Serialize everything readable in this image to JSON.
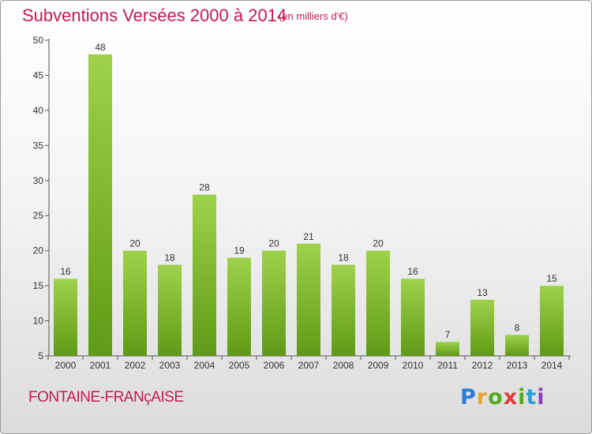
{
  "header": {
    "title": "Subventions Versées 2000 à 2014",
    "subtitle": "(en milliers d'€)"
  },
  "footer": {
    "city": "FONTAINE-FRANçAISE",
    "logo_text": [
      "P",
      "r",
      "o",
      "x",
      "i",
      "t",
      "i"
    ]
  },
  "colors": {
    "bar_light": "#9fd24a",
    "bar_dark": "#5f9a16",
    "title": "#c21a55",
    "axis": "#555555",
    "grid": "#cfcfcf"
  },
  "chart_data": {
    "type": "bar",
    "title": "Subventions Versées 2000 à 2014",
    "subtitle": "(en milliers d'€)",
    "categories": [
      "2000",
      "2001",
      "2002",
      "2003",
      "2004",
      "2005",
      "2006",
      "2007",
      "2008",
      "2009",
      "2010",
      "2011",
      "2012",
      "2013",
      "2014"
    ],
    "values": [
      16,
      48,
      20,
      18,
      28,
      19,
      20,
      21,
      18,
      20,
      16,
      7,
      13,
      8,
      15
    ],
    "ylim": [
      5,
      50
    ],
    "yticks": [
      5,
      10,
      15,
      20,
      25,
      30,
      35,
      40,
      45,
      50
    ],
    "grid": false,
    "data_labels": true
  }
}
